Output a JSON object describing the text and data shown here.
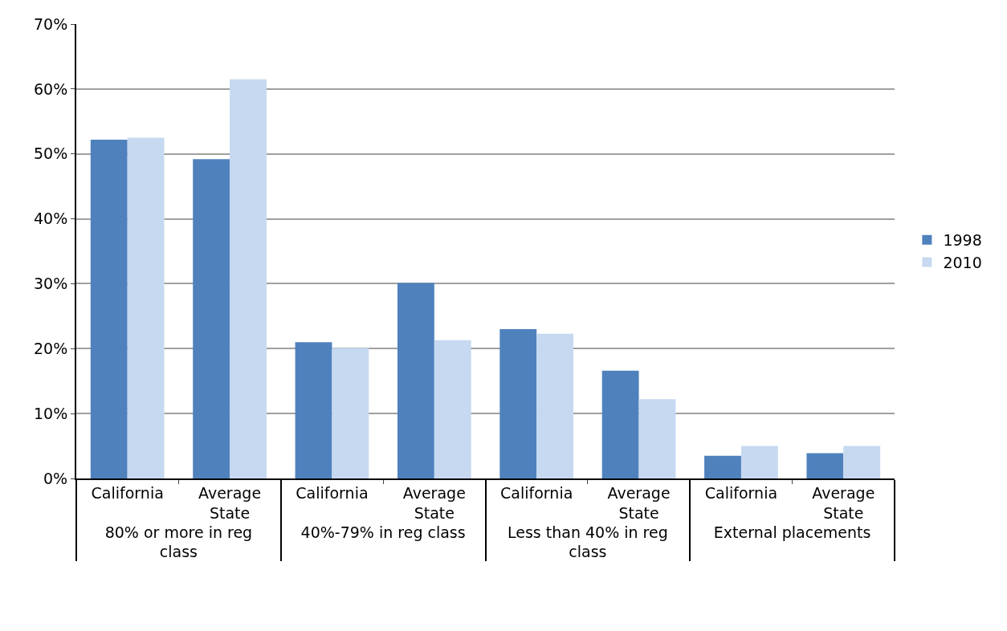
{
  "chart_data": {
    "type": "bar",
    "categories": [
      "California",
      "Average State",
      "California",
      "Average State",
      "California",
      "Average State",
      "California",
      "Average State"
    ],
    "annotations": [
      "80% or more in reg class",
      "40%-79% in reg class",
      "Less than 40% in reg class",
      "External placements"
    ],
    "series": [
      {
        "name": "1998",
        "color": "#4f81bd",
        "values": [
          52.2,
          49.2,
          21.0,
          30.1,
          23.0,
          16.6,
          3.5,
          3.9
        ]
      },
      {
        "name": "2010",
        "color": "#c6d9f0",
        "values": [
          52.5,
          61.5,
          20.1,
          21.3,
          22.3,
          12.2,
          5.0,
          5.0
        ]
      }
    ],
    "ylim": [
      0,
      70
    ],
    "yticks": [
      {
        "value": 0,
        "label": "0%"
      },
      {
        "value": 10,
        "label": "10%"
      },
      {
        "value": 20,
        "label": "20%"
      },
      {
        "value": 30,
        "label": "30%"
      },
      {
        "value": 40,
        "label": "40%"
      },
      {
        "value": 50,
        "label": "50%"
      },
      {
        "value": 60,
        "label": "60%"
      },
      {
        "value": 70,
        "label": "70%"
      }
    ],
    "grid": "y",
    "legend": "right"
  }
}
